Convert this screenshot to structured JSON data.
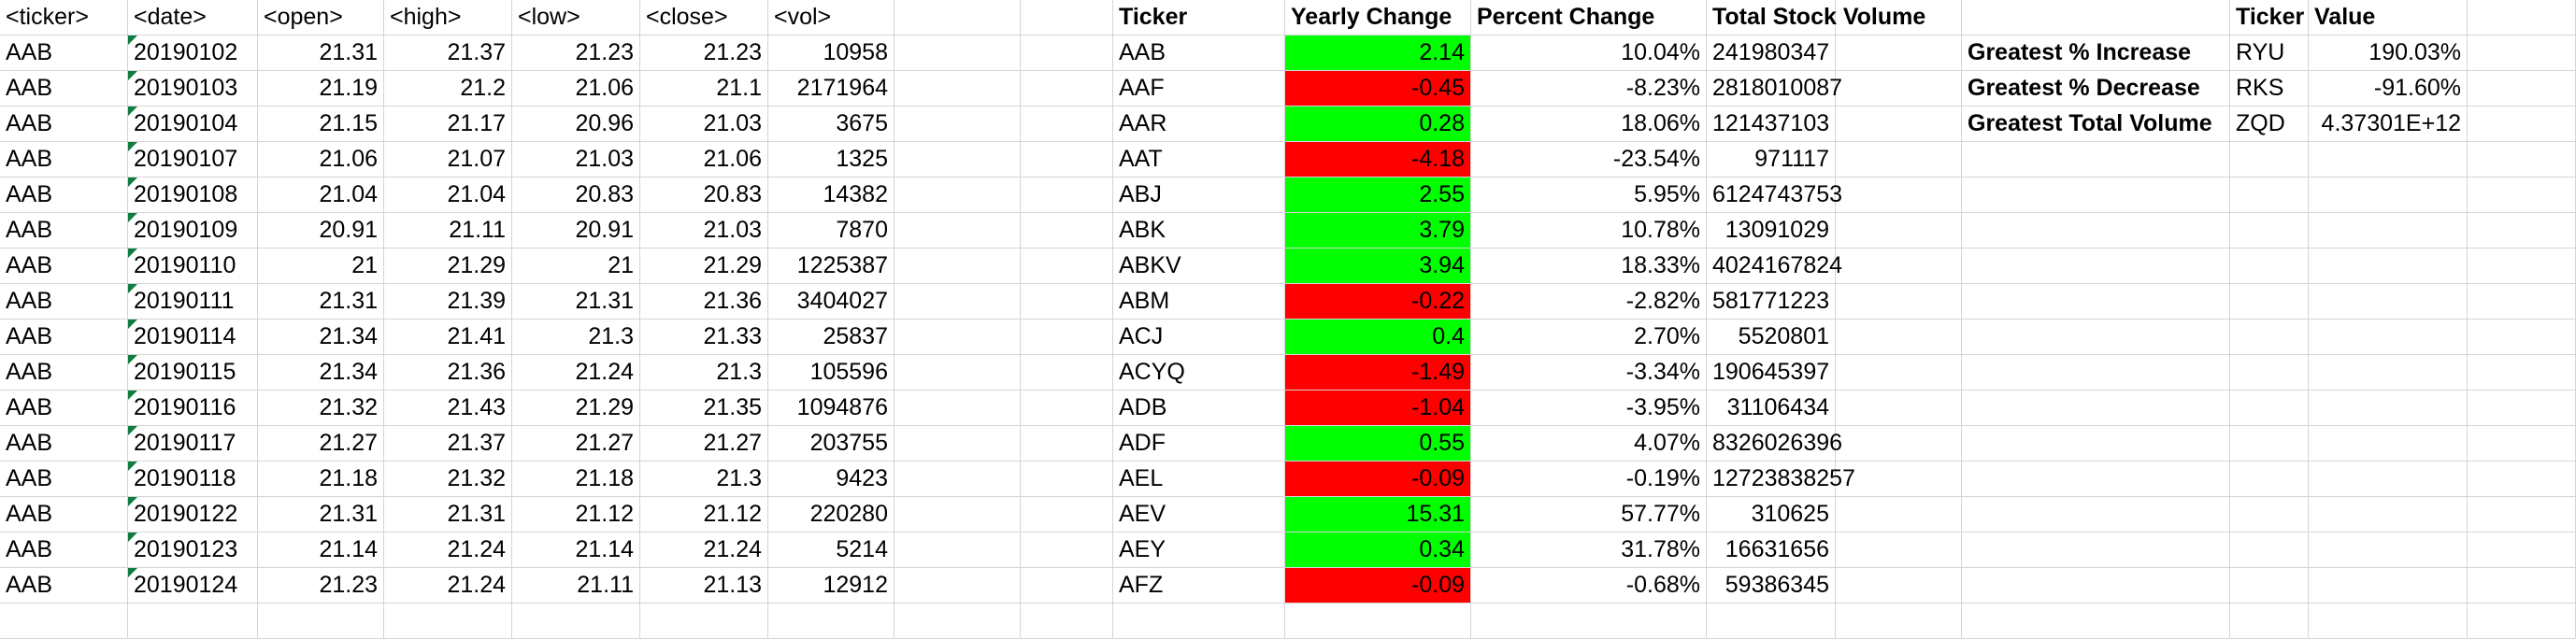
{
  "raw": {
    "headers": [
      "<ticker>",
      "<date>",
      "<open>",
      "<high>",
      "<low>",
      "<close>",
      "<vol>"
    ],
    "rows": [
      [
        "AAB",
        "20190102",
        "21.31",
        "21.37",
        "21.23",
        "21.23",
        "10958"
      ],
      [
        "AAB",
        "20190103",
        "21.19",
        "21.2",
        "21.06",
        "21.1",
        "2171964"
      ],
      [
        "AAB",
        "20190104",
        "21.15",
        "21.17",
        "20.96",
        "21.03",
        "3675"
      ],
      [
        "AAB",
        "20190107",
        "21.06",
        "21.07",
        "21.03",
        "21.06",
        "1325"
      ],
      [
        "AAB",
        "20190108",
        "21.04",
        "21.04",
        "20.83",
        "20.83",
        "14382"
      ],
      [
        "AAB",
        "20190109",
        "20.91",
        "21.11",
        "20.91",
        "21.03",
        "7870"
      ],
      [
        "AAB",
        "20190110",
        "21",
        "21.29",
        "21",
        "21.29",
        "1225387"
      ],
      [
        "AAB",
        "20190111",
        "21.31",
        "21.39",
        "21.31",
        "21.36",
        "3404027"
      ],
      [
        "AAB",
        "20190114",
        "21.34",
        "21.41",
        "21.3",
        "21.33",
        "25837"
      ],
      [
        "AAB",
        "20190115",
        "21.34",
        "21.36",
        "21.24",
        "21.3",
        "105596"
      ],
      [
        "AAB",
        "20190116",
        "21.32",
        "21.43",
        "21.29",
        "21.35",
        "1094876"
      ],
      [
        "AAB",
        "20190117",
        "21.27",
        "21.37",
        "21.27",
        "21.27",
        "203755"
      ],
      [
        "AAB",
        "20190118",
        "21.18",
        "21.32",
        "21.18",
        "21.3",
        "9423"
      ],
      [
        "AAB",
        "20190122",
        "21.31",
        "21.31",
        "21.12",
        "21.12",
        "220280"
      ],
      [
        "AAB",
        "20190123",
        "21.14",
        "21.24",
        "21.14",
        "21.24",
        "5214"
      ],
      [
        "AAB",
        "20190124",
        "21.23",
        "21.24",
        "21.11",
        "21.13",
        "12912"
      ]
    ]
  },
  "summary": {
    "headers": [
      "Ticker",
      "Yearly Change",
      "Percent Change",
      "Total Stock Volume"
    ],
    "rows": [
      {
        "ticker": "AAB",
        "change": "2.14",
        "status": "positive",
        "pct": "10.04%",
        "volume": "241980347"
      },
      {
        "ticker": "AAF",
        "change": "-0.45",
        "status": "negative",
        "pct": "-8.23%",
        "volume": "2818010087"
      },
      {
        "ticker": "AAR",
        "change": "0.28",
        "status": "positive",
        "pct": "18.06%",
        "volume": "121437103"
      },
      {
        "ticker": "AAT",
        "change": "-4.18",
        "status": "negative",
        "pct": "-23.54%",
        "volume": "971117"
      },
      {
        "ticker": "ABJ",
        "change": "2.55",
        "status": "positive",
        "pct": "5.95%",
        "volume": "6124743753"
      },
      {
        "ticker": "ABK",
        "change": "3.79",
        "status": "positive",
        "pct": "10.78%",
        "volume": "13091029"
      },
      {
        "ticker": "ABKV",
        "change": "3.94",
        "status": "positive",
        "pct": "18.33%",
        "volume": "4024167824"
      },
      {
        "ticker": "ABM",
        "change": "-0.22",
        "status": "negative",
        "pct": "-2.82%",
        "volume": "581771223"
      },
      {
        "ticker": "ACJ",
        "change": "0.4",
        "status": "positive",
        "pct": "2.70%",
        "volume": "5520801"
      },
      {
        "ticker": "ACYQ",
        "change": "-1.49",
        "status": "negative",
        "pct": "-3.34%",
        "volume": "190645397"
      },
      {
        "ticker": "ADB",
        "change": "-1.04",
        "status": "negative",
        "pct": "-3.95%",
        "volume": "31106434"
      },
      {
        "ticker": "ADF",
        "change": "0.55",
        "status": "positive",
        "pct": "4.07%",
        "volume": "8326026396"
      },
      {
        "ticker": "AEL",
        "change": "-0.09",
        "status": "negative",
        "pct": "-0.19%",
        "volume": "12723838257"
      },
      {
        "ticker": "AEV",
        "change": "15.31",
        "status": "positive",
        "pct": "57.77%",
        "volume": "310625"
      },
      {
        "ticker": "AEY",
        "change": "0.34",
        "status": "positive",
        "pct": "31.78%",
        "volume": "16631656"
      },
      {
        "ticker": "AFZ",
        "change": "-0.09",
        "status": "negative",
        "pct": "-0.68%",
        "volume": "59386345"
      }
    ]
  },
  "greatest": {
    "headers": [
      "Ticker",
      "Value"
    ],
    "rows": [
      {
        "label": "Greatest % Increase",
        "ticker": "RYU",
        "value": "190.03%"
      },
      {
        "label": "Greatest % Decrease",
        "ticker": "RKS",
        "value": "-91.60%"
      },
      {
        "label": "Greatest Total Volume",
        "ticker": "ZQD",
        "value": "4.37301E+12"
      }
    ]
  },
  "colors": {
    "positive": "#00ff00",
    "negative": "#ff0000",
    "gridline": "#d4d4d4",
    "error_marker": "#107c41"
  }
}
